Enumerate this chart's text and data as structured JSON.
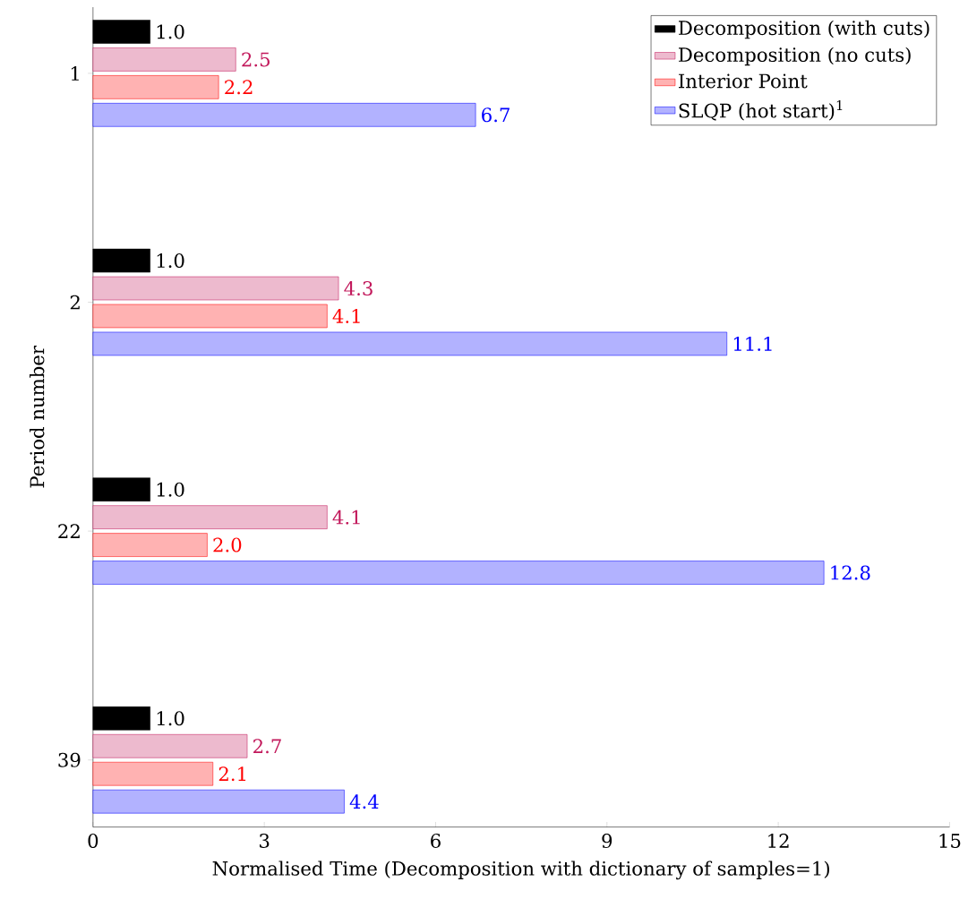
{
  "chart_data": {
    "type": "bar",
    "orientation": "horizontal",
    "xlabel": "Normalised Time (Decomposition with dictionary of samples=1)",
    "ylabel": "Period number",
    "categories": [
      "1",
      "2",
      "22",
      "39"
    ],
    "xlim": [
      0,
      15
    ],
    "xticks": [
      0,
      3,
      6,
      9,
      12,
      15
    ],
    "legend": "top right",
    "series": [
      {
        "name": "Decomposition (with cuts)",
        "color": "#000000",
        "values": [
          1.0,
          1.0,
          1.0,
          1.0
        ],
        "value_labels": [
          "1.0",
          "1.0",
          "1.0",
          "1.0"
        ]
      },
      {
        "name": "Decomposition (no cuts)",
        "color": "#c2185b",
        "values": [
          2.5,
          4.3,
          4.1,
          2.7
        ],
        "value_labels": [
          "2.5",
          "4.3",
          "4.1",
          "2.7"
        ]
      },
      {
        "name": "Interior Point",
        "color": "#ff0000",
        "values": [
          2.2,
          4.1,
          2.0,
          2.1
        ],
        "value_labels": [
          "2.2",
          "4.1",
          "2.0",
          "2.1"
        ]
      },
      {
        "name": "SLQP (hot start)$^{1}$",
        "color": "#0000ff",
        "values": [
          6.7,
          11.1,
          12.8,
          4.4
        ],
        "value_labels": [
          "6.7",
          "11.1",
          "12.8",
          "4.4"
        ]
      }
    ]
  }
}
